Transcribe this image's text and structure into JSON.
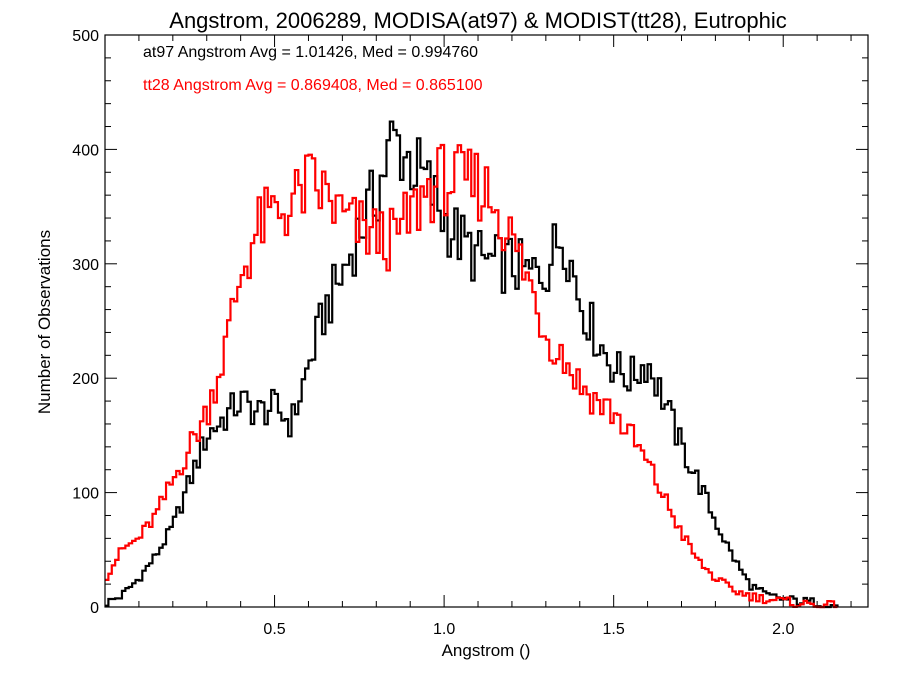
{
  "chart_data": {
    "type": "line",
    "title": "Angstrom, 2006289, MODISA(at97) & MODIST(tt28), Eutrophic",
    "xlabel": "Angstrom ()",
    "ylabel": "Number of Observations",
    "xlim": [
      0.0,
      2.25
    ],
    "ylim": [
      0,
      500
    ],
    "x_ticks": [
      {
        "value": 0.5,
        "label": "0.5"
      },
      {
        "value": 1.0,
        "label": "1.0"
      },
      {
        "value": 1.5,
        "label": "1.5"
      },
      {
        "value": 2.0,
        "label": "2.0"
      }
    ],
    "y_ticks": [
      {
        "value": 0,
        "label": "0"
      },
      {
        "value": 100,
        "label": "100"
      },
      {
        "value": 200,
        "label": "200"
      },
      {
        "value": 300,
        "label": "300"
      },
      {
        "value": 400,
        "label": "400"
      },
      {
        "value": 500,
        "label": "500"
      }
    ],
    "step_style": "histogram",
    "grid": false,
    "series": [
      {
        "name": "at97",
        "color": "#000000",
        "legend_text": "at97 Angstrom Avg = 1.01426, Med = 0.994760",
        "points": [
          [
            0.0,
            3
          ],
          [
            0.05,
            10
          ],
          [
            0.1,
            25
          ],
          [
            0.15,
            45
          ],
          [
            0.2,
            70
          ],
          [
            0.25,
            110
          ],
          [
            0.3,
            150
          ],
          [
            0.35,
            165
          ],
          [
            0.4,
            180
          ],
          [
            0.45,
            170
          ],
          [
            0.5,
            175
          ],
          [
            0.55,
            160
          ],
          [
            0.6,
            210
          ],
          [
            0.65,
            260
          ],
          [
            0.7,
            290
          ],
          [
            0.75,
            330
          ],
          [
            0.8,
            360
          ],
          [
            0.85,
            410
          ],
          [
            0.9,
            390
          ],
          [
            0.95,
            370
          ],
          [
            1.0,
            340
          ],
          [
            1.05,
            320
          ],
          [
            1.1,
            305
          ],
          [
            1.15,
            300
          ],
          [
            1.2,
            300
          ],
          [
            1.25,
            290
          ],
          [
            1.3,
            295
          ],
          [
            1.35,
            330
          ],
          [
            1.4,
            270
          ],
          [
            1.45,
            235
          ],
          [
            1.5,
            210
          ],
          [
            1.55,
            200
          ],
          [
            1.6,
            215
          ],
          [
            1.65,
            180
          ],
          [
            1.7,
            140
          ],
          [
            1.75,
            110
          ],
          [
            1.8,
            75
          ],
          [
            1.85,
            45
          ],
          [
            1.9,
            20
          ],
          [
            1.95,
            10
          ],
          [
            2.0,
            7
          ],
          [
            2.05,
            5
          ],
          [
            2.1,
            4
          ],
          [
            2.15,
            1
          ]
        ]
      },
      {
        "name": "tt28",
        "color": "#ff0000",
        "legend_text": "tt28 Angstrom Avg = 0.869408, Med = 0.865100",
        "points": [
          [
            0.0,
            25
          ],
          [
            0.05,
            50
          ],
          [
            0.1,
            60
          ],
          [
            0.15,
            80
          ],
          [
            0.2,
            110
          ],
          [
            0.25,
            140
          ],
          [
            0.3,
            170
          ],
          [
            0.35,
            220
          ],
          [
            0.4,
            290
          ],
          [
            0.45,
            330
          ],
          [
            0.5,
            345
          ],
          [
            0.55,
            350
          ],
          [
            0.6,
            370
          ],
          [
            0.65,
            360
          ],
          [
            0.7,
            340
          ],
          [
            0.75,
            330
          ],
          [
            0.8,
            325
          ],
          [
            0.85,
            320
          ],
          [
            0.9,
            340
          ],
          [
            0.95,
            365
          ],
          [
            1.0,
            375
          ],
          [
            1.05,
            370
          ],
          [
            1.1,
            370
          ],
          [
            1.15,
            355
          ],
          [
            1.2,
            320
          ],
          [
            1.25,
            285
          ],
          [
            1.3,
            240
          ],
          [
            1.35,
            220
          ],
          [
            1.4,
            195
          ],
          [
            1.45,
            180
          ],
          [
            1.5,
            170
          ],
          [
            1.55,
            150
          ],
          [
            1.6,
            125
          ],
          [
            1.65,
            95
          ],
          [
            1.7,
            65
          ],
          [
            1.75,
            40
          ],
          [
            1.8,
            25
          ],
          [
            1.85,
            15
          ],
          [
            1.9,
            10
          ],
          [
            1.95,
            7
          ],
          [
            2.0,
            5
          ],
          [
            2.05,
            3
          ],
          [
            2.1,
            2
          ],
          [
            2.15,
            1
          ]
        ]
      }
    ]
  }
}
